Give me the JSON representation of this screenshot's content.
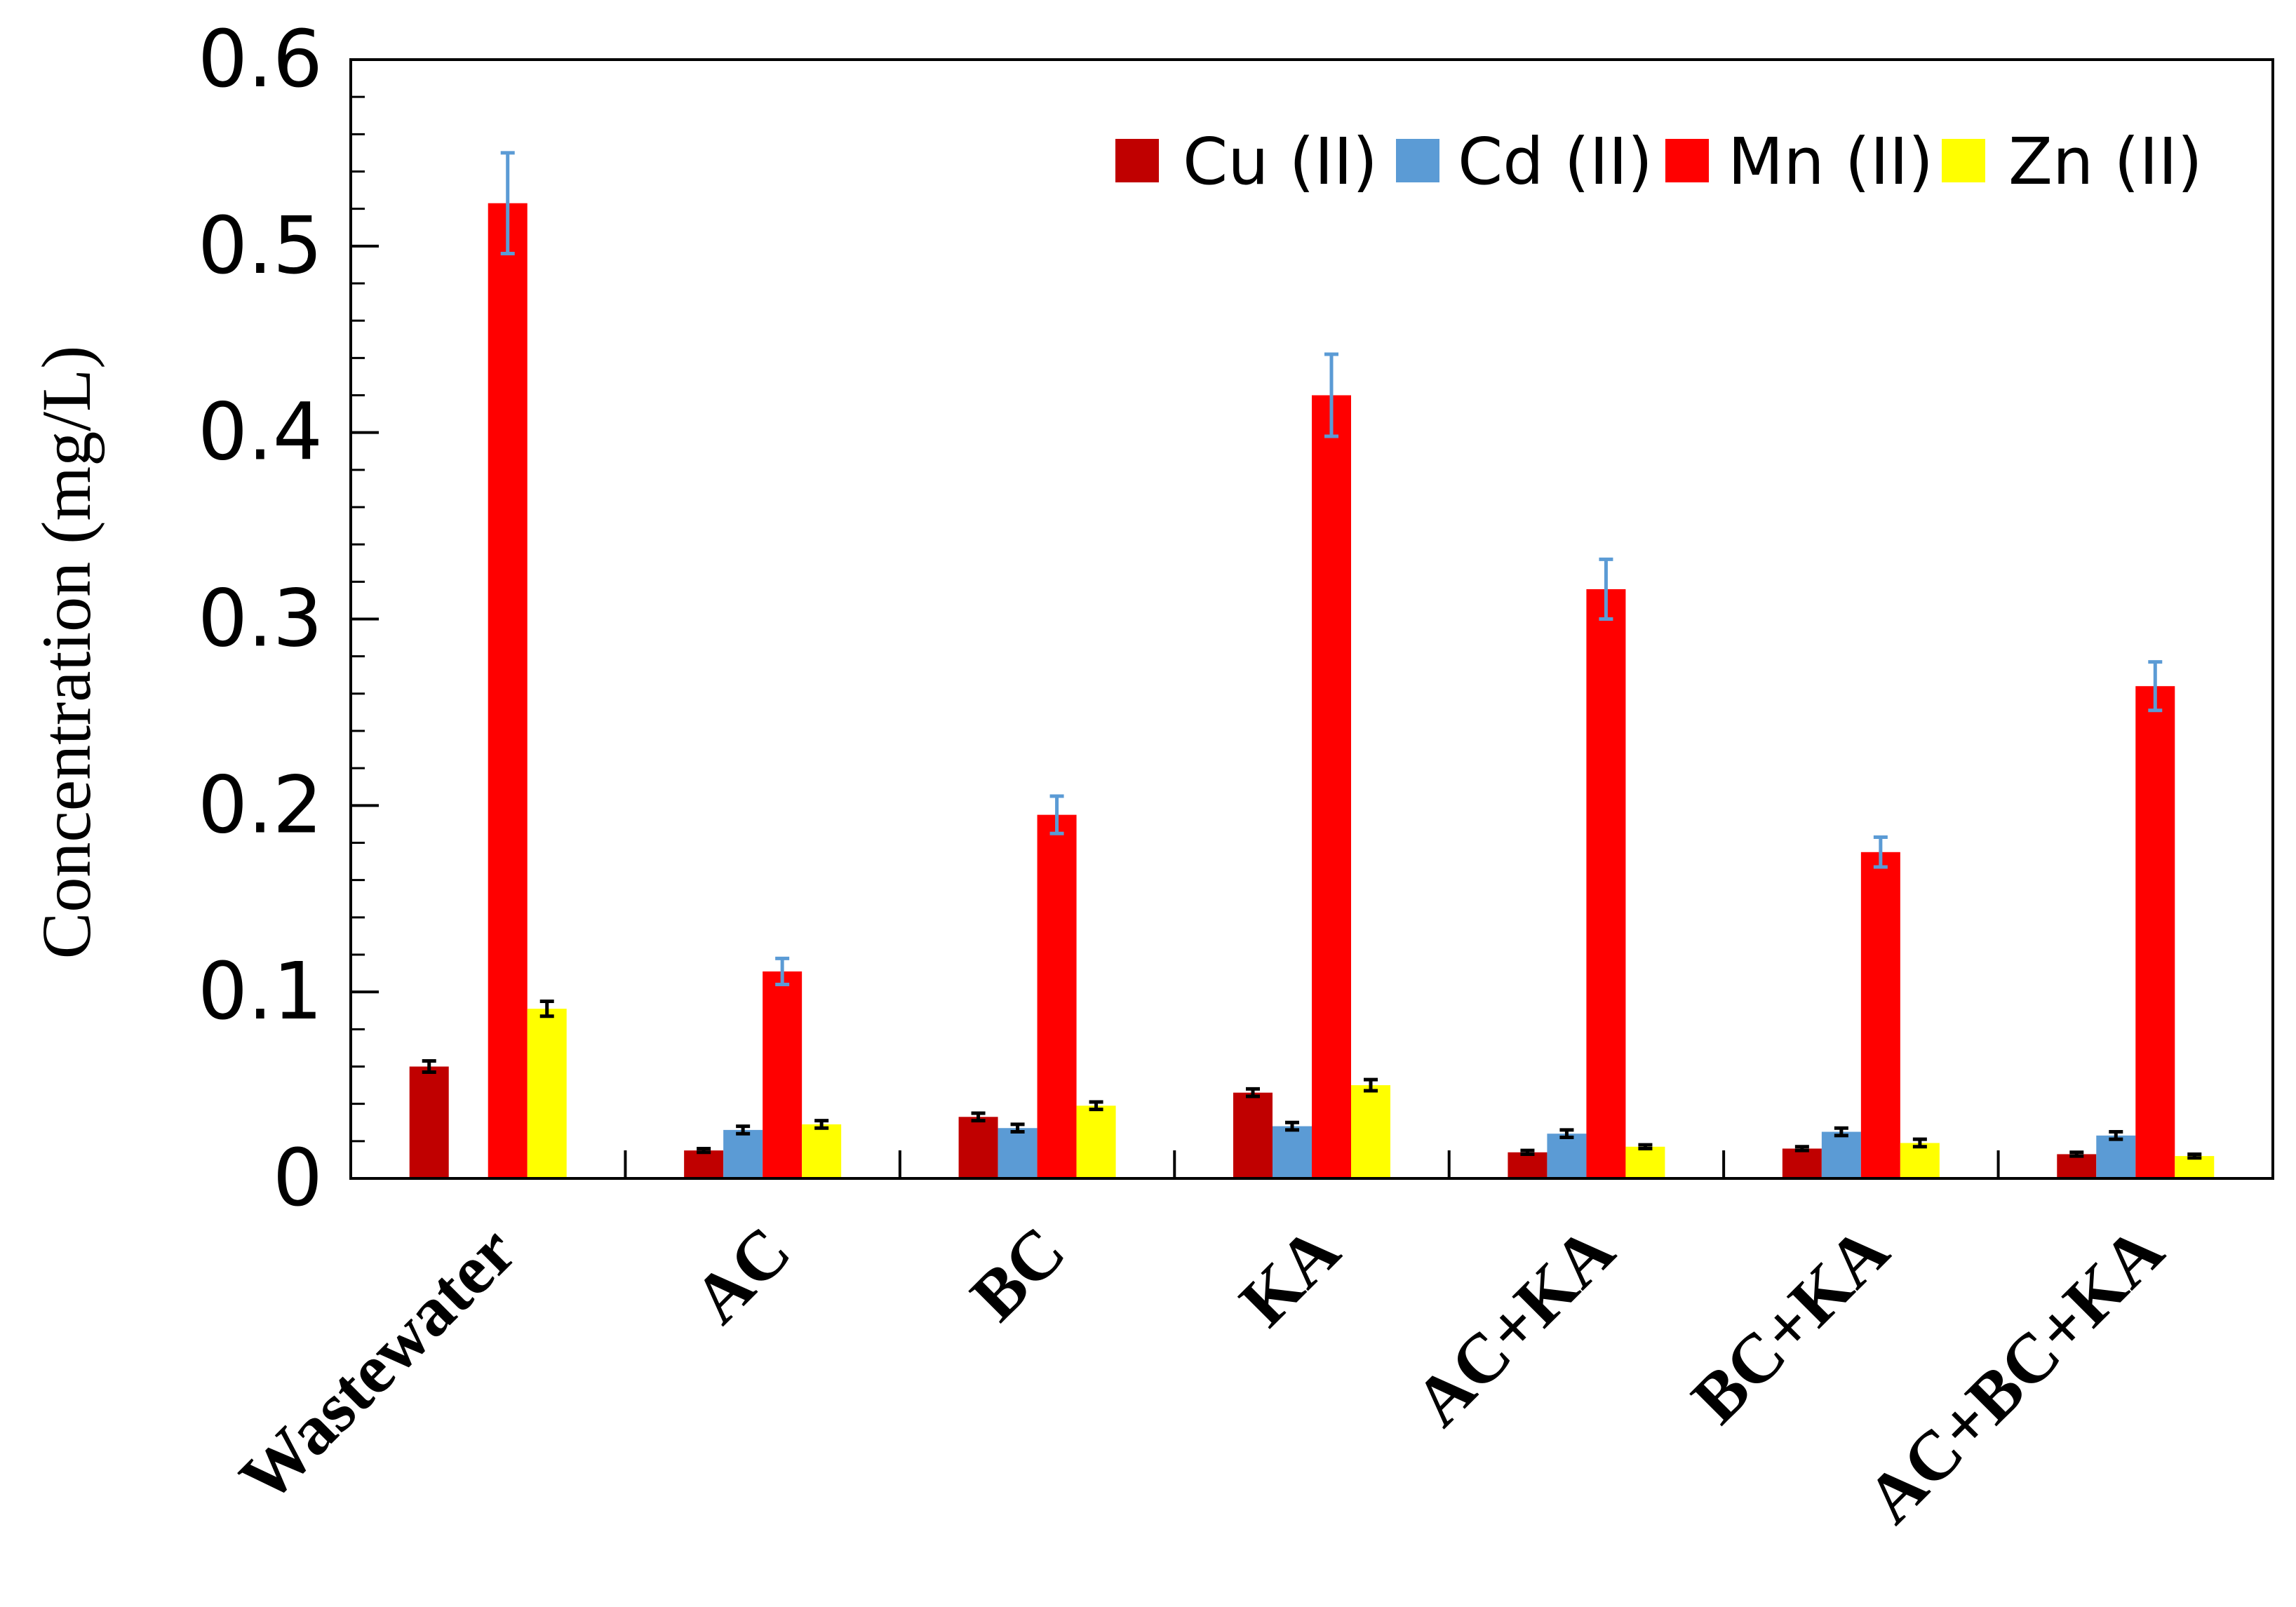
{
  "chart_data": {
    "type": "bar",
    "title": "",
    "xlabel": "",
    "ylabel": "Concentration (mg/L)",
    "ylim": [
      0,
      0.6
    ],
    "yticks": [
      "0",
      "0.1",
      "0.2",
      "0.3",
      "0.4",
      "0.5",
      "0.6"
    ],
    "grid": false,
    "legend_position": "top-right",
    "categories": [
      "Wastewater",
      "AC",
      "BC",
      "KA",
      "AC+KA",
      "BC+KA",
      "AC+BC+KA"
    ],
    "series": [
      {
        "name": "Cu (II)",
        "color": "#c00000",
        "error_color": "#000000",
        "values": [
          0.06,
          0.015,
          0.033,
          0.046,
          0.014,
          0.016,
          0.013
        ],
        "errors": [
          0.003,
          0.001,
          0.002,
          0.002,
          0.001,
          0.001,
          0.001
        ]
      },
      {
        "name": "Cd (II)",
        "color": "#5b9bd5",
        "error_color": "#000000",
        "values": [
          null,
          0.026,
          0.027,
          0.028,
          0.024,
          0.025,
          0.023
        ],
        "errors": [
          null,
          0.002,
          0.002,
          0.002,
          0.002,
          0.002,
          0.002
        ]
      },
      {
        "name": "Mn (II)",
        "color": "#ff0000",
        "error_color": "#5b9bd5",
        "values": [
          0.523,
          0.111,
          0.195,
          0.42,
          0.316,
          0.175,
          0.264
        ],
        "errors": [
          0.027,
          0.007,
          0.01,
          0.022,
          0.016,
          0.008,
          0.013
        ]
      },
      {
        "name": "Zn (II)",
        "color": "#ffff00",
        "error_color": "#000000",
        "values": [
          0.091,
          0.029,
          0.039,
          0.05,
          0.017,
          0.019,
          0.012
        ],
        "errors": [
          0.004,
          0.002,
          0.002,
          0.003,
          0.001,
          0.002,
          0.001
        ]
      }
    ]
  }
}
